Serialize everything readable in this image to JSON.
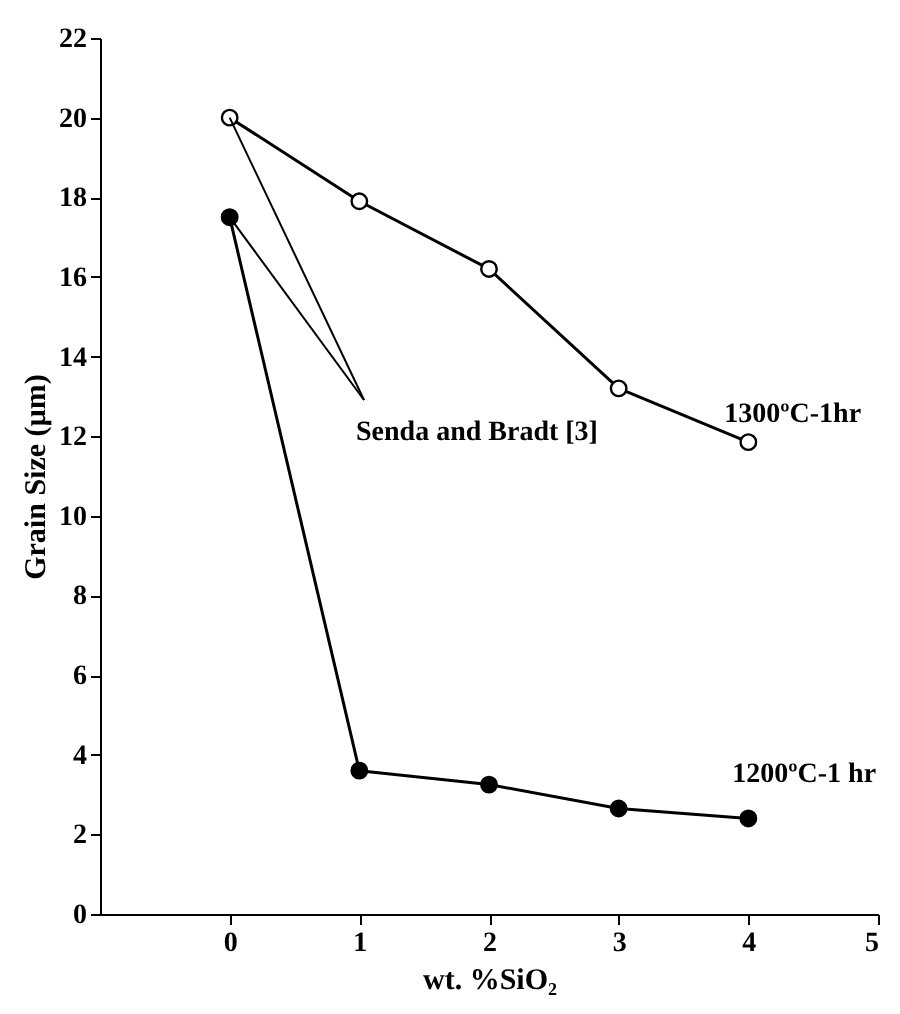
{
  "chart_data": {
    "type": "line",
    "xlabel": "wt. %SiO₂",
    "ylabel": "Grain Size (µm)",
    "x": [
      0,
      1,
      2,
      3,
      4
    ],
    "xlim": [
      -1,
      5
    ],
    "xticks": [
      0,
      1,
      2,
      3,
      4,
      5
    ],
    "ylim": [
      0,
      22
    ],
    "yticks": [
      0,
      2,
      4,
      6,
      8,
      10,
      12,
      14,
      16,
      18,
      20,
      22
    ],
    "series": [
      {
        "name": "1300ºC-1hr",
        "color": "#000000",
        "values": [
          20,
          17.9,
          16.2,
          13.2,
          11.85
        ]
      },
      {
        "name": "1200ºC-1 hr",
        "color": "#000000",
        "values": [
          17.5,
          3.6,
          3.25,
          2.65,
          2.4
        ]
      }
    ],
    "annotations": [
      {
        "text": "Senda and Bradt [3]",
        "x": 0,
        "y": 20
      }
    ],
    "marker": "circle",
    "line_style": "solid",
    "grid": false
  }
}
